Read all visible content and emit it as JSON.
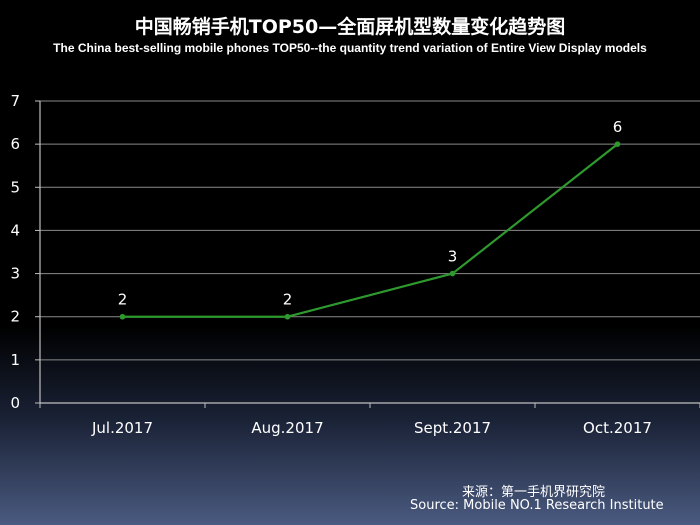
{
  "title_cn": "中国畅销手机TOP50—全面屏机型数量变化趋势图",
  "title_en": "The China best-selling mobile phones TOP50--the quantity trend variation of Entire View Display models",
  "source_cn": "来源：第一手机界研究院",
  "source_en": "Source: Mobile NO.1 Research Institute",
  "chart_data": {
    "type": "line",
    "title": "中国畅销手机TOP50—全面屏机型数量变化趋势图",
    "subtitle": "The China best-selling mobile phones TOP50--the quantity trend variation of Entire View Display models",
    "categories": [
      "Jul.2017",
      "Aug.2017",
      "Sept.2017",
      "Oct.2017"
    ],
    "series": [
      {
        "values": [
          2,
          2,
          3,
          6
        ],
        "color": "#2e9a2e"
      }
    ],
    "data_labels": [
      "2",
      "2",
      "3",
      "6"
    ],
    "yticks": [
      "0",
      "1",
      "2",
      "3",
      "4",
      "5",
      "6",
      "7"
    ],
    "ylim": [
      0,
      7
    ],
    "grid": true,
    "legend": "none",
    "xlabel": "",
    "ylabel": ""
  }
}
